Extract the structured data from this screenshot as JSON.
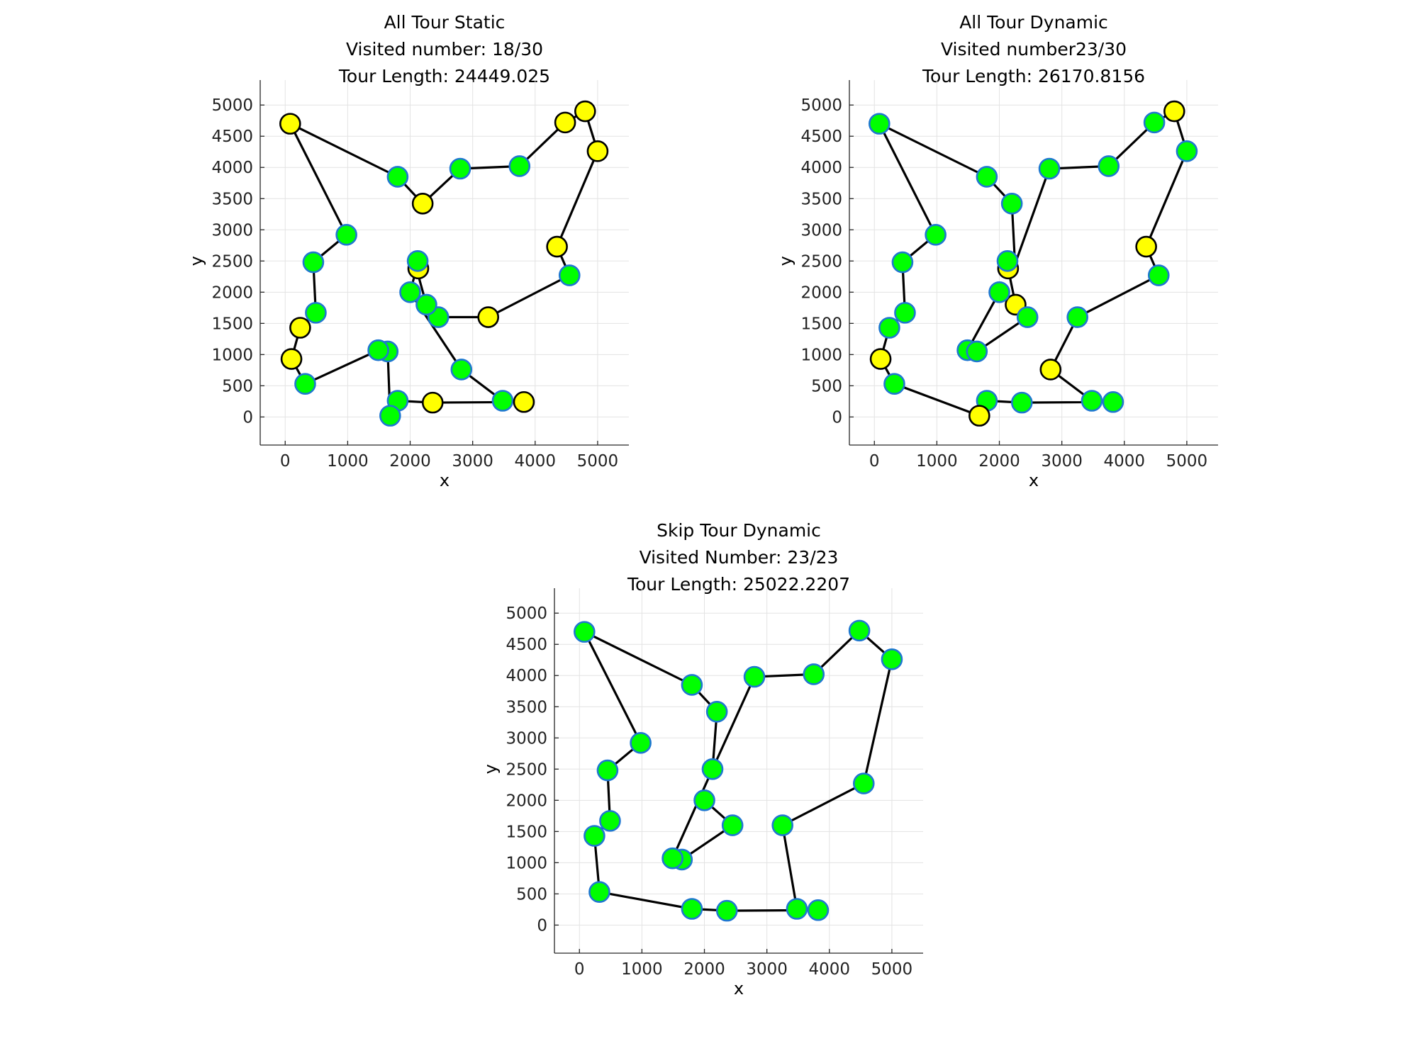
{
  "colors": {
    "visited_fill": "#00ff00",
    "visited_edge": "#1f77d0",
    "skipped_fill": "#ffff00",
    "skipped_edge": "#000000",
    "route": "#000000"
  },
  "chart_data": [
    {
      "type": "scatter",
      "subtype": "tsp-tour",
      "title_lines": [
        "All Tour Static",
        "Visited number: 18/30",
        "Tour Length: 24449.025"
      ],
      "xlabel": "x",
      "ylabel": "y",
      "xlim": [
        -400,
        5500
      ],
      "ylim": [
        -450,
        5400
      ],
      "xticks": [
        0,
        1000,
        2000,
        3000,
        4000,
        5000
      ],
      "yticks": [
        0,
        500,
        1000,
        1500,
        2000,
        2500,
        3000,
        3500,
        4000,
        4500,
        5000
      ],
      "grid": true,
      "tour": [
        [
          80,
          4700
        ],
        [
          1800,
          3850
        ],
        [
          2200,
          3420
        ],
        [
          2800,
          3980
        ],
        [
          3750,
          4020
        ],
        [
          4480,
          4720
        ],
        [
          4800,
          4900
        ],
        [
          5000,
          4260
        ],
        [
          4350,
          2730
        ],
        [
          4550,
          2270
        ],
        [
          3250,
          1600
        ],
        [
          2450,
          1600
        ],
        [
          2260,
          1800
        ],
        [
          2100,
          2380
        ],
        [
          2000,
          2000
        ],
        [
          2820,
          760
        ],
        [
          3480,
          260
        ],
        [
          3820,
          240
        ],
        [
          2360,
          230
        ],
        [
          1800,
          260
        ],
        [
          1680,
          20
        ],
        [
          1640,
          1050
        ],
        [
          1490,
          1070
        ],
        [
          320,
          530
        ],
        [
          100,
          930
        ],
        [
          240,
          1430
        ],
        [
          490,
          1670
        ],
        [
          450,
          2480
        ],
        [
          980,
          2920
        ],
        [
          80,
          4700
        ]
      ],
      "points": [
        {
          "x": 80,
          "y": 4700,
          "visited": false
        },
        {
          "x": 1800,
          "y": 3850,
          "visited": true
        },
        {
          "x": 2200,
          "y": 3420,
          "visited": false
        },
        {
          "x": 2800,
          "y": 3980,
          "visited": true
        },
        {
          "x": 3750,
          "y": 4020,
          "visited": true
        },
        {
          "x": 4480,
          "y": 4720,
          "visited": false
        },
        {
          "x": 4800,
          "y": 4900,
          "visited": false
        },
        {
          "x": 5000,
          "y": 4260,
          "visited": false
        },
        {
          "x": 4350,
          "y": 2730,
          "visited": false
        },
        {
          "x": 4550,
          "y": 2270,
          "visited": true
        },
        {
          "x": 3250,
          "y": 1600,
          "visited": false
        },
        {
          "x": 2450,
          "y": 1600,
          "visited": true
        },
        {
          "x": 2260,
          "y": 1800,
          "visited": true
        },
        {
          "x": 2130,
          "y": 2380,
          "visited": false
        },
        {
          "x": 2120,
          "y": 2500,
          "visited": true
        },
        {
          "x": 2000,
          "y": 2000,
          "visited": true
        },
        {
          "x": 2820,
          "y": 760,
          "visited": true
        },
        {
          "x": 3480,
          "y": 260,
          "visited": true
        },
        {
          "x": 3820,
          "y": 240,
          "visited": false
        },
        {
          "x": 2360,
          "y": 230,
          "visited": false
        },
        {
          "x": 1800,
          "y": 260,
          "visited": true
        },
        {
          "x": 1680,
          "y": 20,
          "visited": true
        },
        {
          "x": 1640,
          "y": 1050,
          "visited": true
        },
        {
          "x": 1490,
          "y": 1070,
          "visited": true
        },
        {
          "x": 320,
          "y": 530,
          "visited": true
        },
        {
          "x": 100,
          "y": 930,
          "visited": false
        },
        {
          "x": 240,
          "y": 1430,
          "visited": false
        },
        {
          "x": 490,
          "y": 1670,
          "visited": true
        },
        {
          "x": 450,
          "y": 2480,
          "visited": true
        },
        {
          "x": 980,
          "y": 2920,
          "visited": true
        }
      ]
    },
    {
      "type": "scatter",
      "subtype": "tsp-tour",
      "title_lines": [
        "All Tour Dynamic",
        "Visited number23/30",
        "Tour Length: 26170.8156"
      ],
      "xlabel": "x",
      "ylabel": "y",
      "xlim": [
        -400,
        5500
      ],
      "ylim": [
        -450,
        5400
      ],
      "xticks": [
        0,
        1000,
        2000,
        3000,
        4000,
        5000
      ],
      "yticks": [
        0,
        500,
        1000,
        1500,
        2000,
        2500,
        3000,
        3500,
        4000,
        4500,
        5000
      ],
      "grid": true,
      "tour": [
        [
          80,
          4700
        ],
        [
          1800,
          3850
        ],
        [
          2200,
          3420
        ],
        [
          2250,
          2450
        ],
        [
          2800,
          3980
        ],
        [
          3750,
          4020
        ],
        [
          4480,
          4720
        ],
        [
          4800,
          4900
        ],
        [
          5000,
          4260
        ],
        [
          4350,
          2730
        ],
        [
          4550,
          2270
        ],
        [
          3250,
          1600
        ],
        [
          2820,
          760
        ],
        [
          3480,
          260
        ],
        [
          3820,
          240
        ],
        [
          2360,
          230
        ],
        [
          1800,
          260
        ],
        [
          1680,
          20
        ],
        [
          320,
          530
        ],
        [
          100,
          930
        ],
        [
          240,
          1430
        ],
        [
          490,
          1670
        ],
        [
          450,
          2480
        ],
        [
          980,
          2920
        ],
        [
          80,
          4700
        ]
      ],
      "extra_segments": [
        [
          [
            2140,
            2380
          ],
          [
            2260,
            1800
          ]
        ],
        [
          [
            1490,
            1070
          ],
          [
            2000,
            2000
          ]
        ],
        [
          [
            1640,
            1050
          ],
          [
            2450,
            1600
          ]
        ]
      ],
      "points": [
        {
          "x": 80,
          "y": 4700,
          "visited": true
        },
        {
          "x": 1800,
          "y": 3850,
          "visited": true
        },
        {
          "x": 2200,
          "y": 3420,
          "visited": true
        },
        {
          "x": 2800,
          "y": 3980,
          "visited": true
        },
        {
          "x": 3750,
          "y": 4020,
          "visited": true
        },
        {
          "x": 4480,
          "y": 4720,
          "visited": true
        },
        {
          "x": 4800,
          "y": 4900,
          "visited": false
        },
        {
          "x": 5000,
          "y": 4260,
          "visited": true
        },
        {
          "x": 4350,
          "y": 2730,
          "visited": false
        },
        {
          "x": 4550,
          "y": 2270,
          "visited": true
        },
        {
          "x": 3250,
          "y": 1600,
          "visited": true
        },
        {
          "x": 2820,
          "y": 760,
          "visited": false
        },
        {
          "x": 3480,
          "y": 260,
          "visited": true
        },
        {
          "x": 3820,
          "y": 240,
          "visited": true
        },
        {
          "x": 2360,
          "y": 230,
          "visited": true
        },
        {
          "x": 1800,
          "y": 260,
          "visited": true
        },
        {
          "x": 1680,
          "y": 20,
          "visited": false
        },
        {
          "x": 320,
          "y": 530,
          "visited": true
        },
        {
          "x": 100,
          "y": 930,
          "visited": false
        },
        {
          "x": 240,
          "y": 1430,
          "visited": true
        },
        {
          "x": 490,
          "y": 1670,
          "visited": true
        },
        {
          "x": 450,
          "y": 2480,
          "visited": true
        },
        {
          "x": 980,
          "y": 2920,
          "visited": true
        },
        {
          "x": 2140,
          "y": 2380,
          "visited": false
        },
        {
          "x": 2260,
          "y": 1800,
          "visited": false
        },
        {
          "x": 2450,
          "y": 1600,
          "visited": true
        },
        {
          "x": 2000,
          "y": 2000,
          "visited": true
        },
        {
          "x": 1490,
          "y": 1070,
          "visited": true
        },
        {
          "x": 1640,
          "y": 1050,
          "visited": true
        },
        {
          "x": 2130,
          "y": 2500,
          "visited": true
        }
      ]
    },
    {
      "type": "scatter",
      "subtype": "tsp-tour",
      "title_lines": [
        "Skip Tour Dynamic",
        "Visited Number: 23/23",
        "Tour Length: 25022.2207"
      ],
      "xlabel": "x",
      "ylabel": "y",
      "xlim": [
        -400,
        5500
      ],
      "ylim": [
        -450,
        5400
      ],
      "xticks": [
        0,
        1000,
        2000,
        3000,
        4000,
        5000
      ],
      "yticks": [
        0,
        500,
        1000,
        1500,
        2000,
        2500,
        3000,
        3500,
        4000,
        4500,
        5000
      ],
      "grid": true,
      "tour": [
        [
          80,
          4700
        ],
        [
          1800,
          3850
        ],
        [
          2200,
          3420
        ],
        [
          2130,
          2500
        ],
        [
          2800,
          3980
        ],
        [
          3750,
          4020
        ],
        [
          4480,
          4720
        ],
        [
          5000,
          4260
        ],
        [
          4550,
          2270
        ],
        [
          3250,
          1600
        ],
        [
          3480,
          260
        ],
        [
          3820,
          240
        ],
        [
          2360,
          230
        ],
        [
          1800,
          260
        ],
        [
          320,
          530
        ],
        [
          240,
          1430
        ],
        [
          490,
          1670
        ],
        [
          450,
          2480
        ],
        [
          980,
          2920
        ],
        [
          80,
          4700
        ]
      ],
      "extra_segments": [
        [
          [
            2130,
            2500
          ],
          [
            1490,
            1070
          ]
        ],
        [
          [
            2000,
            2000
          ],
          [
            2450,
            1600
          ]
        ],
        [
          [
            2450,
            1600
          ],
          [
            1640,
            1050
          ]
        ]
      ],
      "points": [
        {
          "x": 80,
          "y": 4700,
          "visited": true
        },
        {
          "x": 1800,
          "y": 3850,
          "visited": true
        },
        {
          "x": 2200,
          "y": 3420,
          "visited": true
        },
        {
          "x": 2800,
          "y": 3980,
          "visited": true
        },
        {
          "x": 3750,
          "y": 4020,
          "visited": true
        },
        {
          "x": 4480,
          "y": 4720,
          "visited": true
        },
        {
          "x": 5000,
          "y": 4260,
          "visited": true
        },
        {
          "x": 4550,
          "y": 2270,
          "visited": true
        },
        {
          "x": 3250,
          "y": 1600,
          "visited": true
        },
        {
          "x": 3480,
          "y": 260,
          "visited": true
        },
        {
          "x": 3820,
          "y": 240,
          "visited": true
        },
        {
          "x": 2360,
          "y": 230,
          "visited": true
        },
        {
          "x": 1800,
          "y": 260,
          "visited": true
        },
        {
          "x": 320,
          "y": 530,
          "visited": true
        },
        {
          "x": 240,
          "y": 1430,
          "visited": true
        },
        {
          "x": 490,
          "y": 1670,
          "visited": true
        },
        {
          "x": 450,
          "y": 2480,
          "visited": true
        },
        {
          "x": 980,
          "y": 2920,
          "visited": true
        },
        {
          "x": 2130,
          "y": 2500,
          "visited": true
        },
        {
          "x": 2000,
          "y": 2000,
          "visited": true
        },
        {
          "x": 2450,
          "y": 1600,
          "visited": true
        },
        {
          "x": 1640,
          "y": 1050,
          "visited": true
        },
        {
          "x": 1490,
          "y": 1070,
          "visited": true
        }
      ]
    }
  ]
}
